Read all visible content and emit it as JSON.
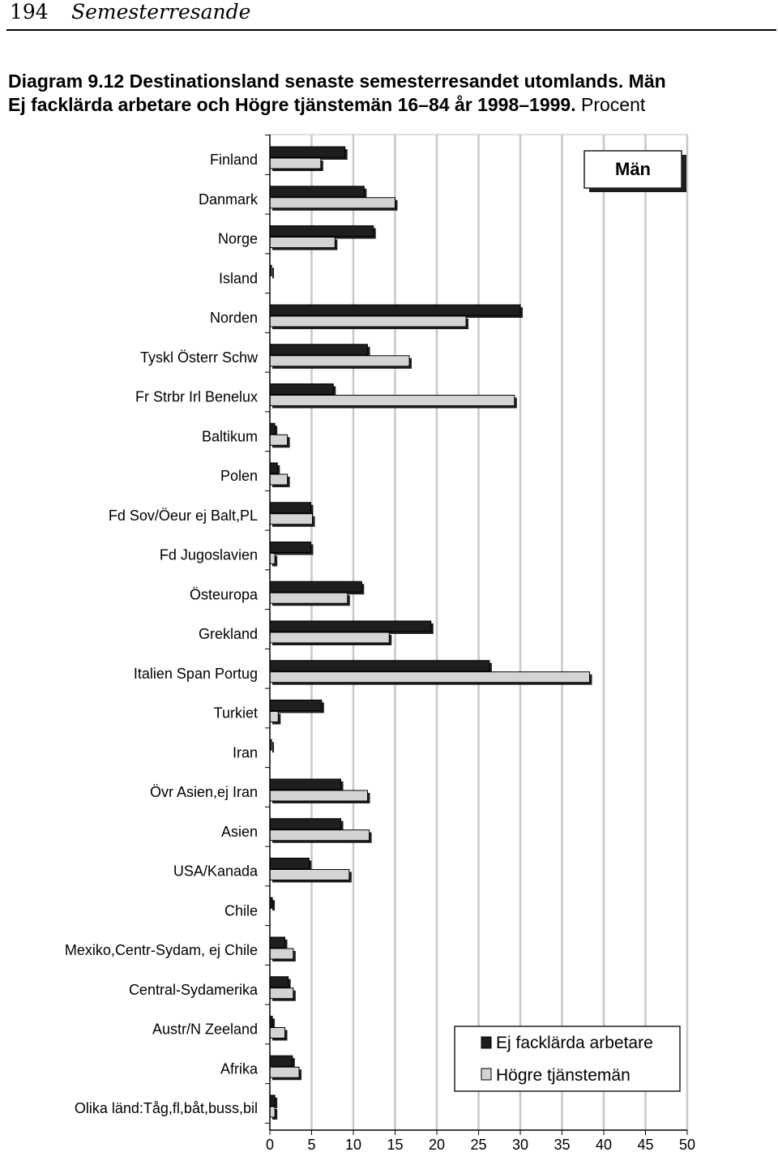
{
  "header": {
    "page_number": "194",
    "running_title": "Semesterresande"
  },
  "caption": {
    "line1": "Diagram 9.12 Destinationsland senaste semesterresandet utomlands. Män",
    "line2": "Ej facklärda arbetare och Högre tjänstemän 16–84 år 1998–1999.",
    "line2_suffix": "Procent"
  },
  "chart_data": {
    "type": "bar",
    "orientation": "horizontal",
    "badge": "Män",
    "categories": [
      "Finland",
      "Danmark",
      "Norge",
      "Island",
      "Norden",
      "Tyskl Österr Schw",
      "Fr Strbr Irl Benelux",
      "Baltikum",
      "Polen",
      "Fd Sov/Öeur ej Balt,PL",
      "Fd Jugoslavien",
      "Östeuropa",
      "Grekland",
      "Italien Span Portug",
      "Turkiet",
      "Iran",
      "Övr Asien,ej Iran",
      "Asien",
      "USA/Kanada",
      "Chile",
      "Mexiko,Centr-Sydam, ej Chile",
      "Central-Sydamerika",
      "Austr/N Zeeland",
      "Afrika",
      "Olika länd:Tåg,fl,båt,buss,bil"
    ],
    "series": [
      {
        "name": "Ej facklärda arbetare",
        "color": "#1e1e1e",
        "values": [
          9,
          11.3,
          12.4,
          0.2,
          30,
          11.7,
          7.6,
          0.6,
          0.9,
          4.9,
          4.9,
          11,
          19.3,
          26.3,
          6.2,
          0.2,
          8.5,
          8.5,
          4.7,
          0.3,
          1.8,
          2.2,
          0.3,
          2.7,
          0.6
        ]
      },
      {
        "name": "Högre tjänstemän",
        "color": "#d4d4d4",
        "values": [
          6.1,
          15,
          7.8,
          0,
          23.5,
          16.7,
          29.3,
          2.1,
          2.1,
          5.1,
          0.6,
          9.3,
          14.3,
          38.3,
          1,
          0,
          11.7,
          11.9,
          9.5,
          0,
          2.8,
          2.8,
          1.8,
          3.5,
          0.6
        ]
      }
    ],
    "xlim": [
      0,
      50
    ],
    "xticks": [
      "0",
      "5",
      "10",
      "15",
      "20",
      "25",
      "30",
      "35",
      "40",
      "45",
      "50"
    ],
    "grid": true,
    "legend_position": "bottom-right"
  }
}
